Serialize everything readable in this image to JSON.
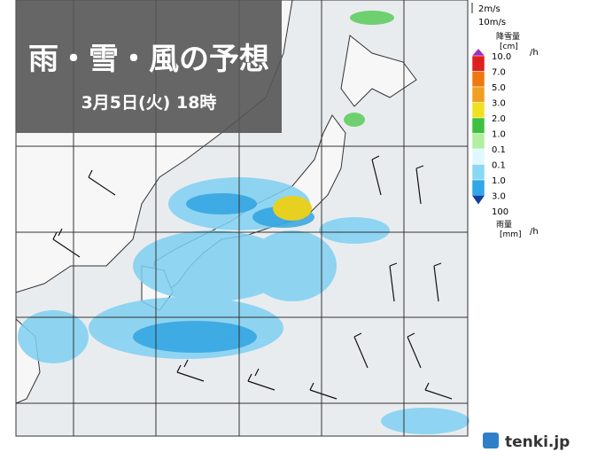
{
  "header": {
    "title": "雨・雪・風の予想",
    "subtitle": "3月5日(火) 18時"
  },
  "legend": {
    "wind": [
      "2m/s",
      "10m/s"
    ],
    "snow_title": "降雪量",
    "snow_unit": "[cm]",
    "snow_per": "/h",
    "snow_scale": [
      "10.0",
      "7.0",
      "5.0",
      "3.0",
      "2.0",
      "1.0",
      "0.1"
    ],
    "rain_scale": [
      "0.1",
      "1.0",
      "3.0",
      "100"
    ],
    "rain_title": "雨量",
    "rain_unit": "[mm]",
    "rain_per": "/h"
  },
  "brand": "tenki.jp"
}
